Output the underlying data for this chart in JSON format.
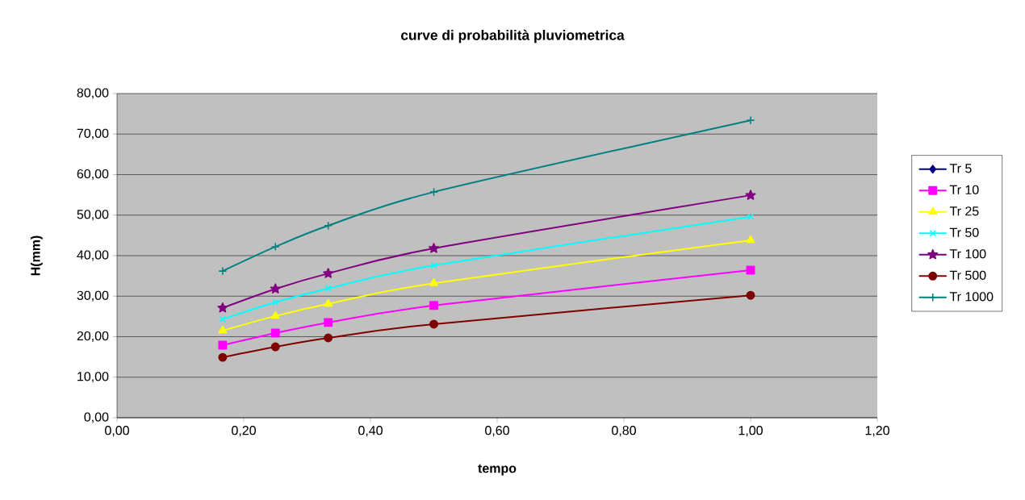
{
  "chart_data": {
    "type": "line",
    "title": "curve di probabilità pluviometrica",
    "xlabel": "tempo",
    "ylabel": "H(mm)",
    "x": [
      0.1667,
      0.25,
      0.3333,
      0.5,
      1.0
    ],
    "series": [
      {
        "name": "Tr 5",
        "color": "#000080",
        "marker": "diamond",
        "values": [
          null,
          null,
          null,
          null,
          null
        ]
      },
      {
        "name": "Tr 10",
        "color": "#ff00ff",
        "marker": "square",
        "values": [
          17.9,
          20.9,
          23.5,
          27.7,
          36.4
        ]
      },
      {
        "name": "Tr 25",
        "color": "#ffff00",
        "marker": "triangle",
        "values": [
          21.5,
          25.1,
          28.1,
          33.2,
          43.8
        ]
      },
      {
        "name": "Tr 50",
        "color": "#00ffff",
        "marker": "cross",
        "values": [
          24.3,
          28.5,
          31.9,
          37.6,
          49.6
        ]
      },
      {
        "name": "Tr 100",
        "color": "#800080",
        "marker": "star",
        "values": [
          27.1,
          31.8,
          35.6,
          41.8,
          54.9
        ]
      },
      {
        "name": "Tr 500",
        "color": "#800000",
        "marker": "circle",
        "values": [
          14.9,
          17.5,
          19.7,
          23.1,
          30.2
        ]
      },
      {
        "name": "Tr 1000",
        "color": "#008080",
        "marker": "plus",
        "values": [
          36.2,
          42.2,
          47.4,
          55.7,
          73.4
        ]
      }
    ],
    "xlim": [
      0,
      1.2
    ],
    "xticks": [
      {
        "value": 0,
        "label": "0,00"
      },
      {
        "value": 0.2,
        "label": "0,20"
      },
      {
        "value": 0.4,
        "label": "0,40"
      },
      {
        "value": 0.6,
        "label": "0,60"
      },
      {
        "value": 0.8,
        "label": "0,80"
      },
      {
        "value": 1.0,
        "label": "1,00"
      },
      {
        "value": 1.2,
        "label": "1,20"
      }
    ],
    "ylim": [
      0,
      80
    ],
    "yticks": [
      {
        "value": 0,
        "label": "0,00"
      },
      {
        "value": 10,
        "label": "10,00"
      },
      {
        "value": 20,
        "label": "20,00"
      },
      {
        "value": 30,
        "label": "30,00"
      },
      {
        "value": 40,
        "label": "40,00"
      },
      {
        "value": 50,
        "label": "50,00"
      },
      {
        "value": 60,
        "label": "60,00"
      },
      {
        "value": 70,
        "label": "70,00"
      },
      {
        "value": 80,
        "label": "80,00"
      }
    ],
    "grid": "y",
    "legend": "right",
    "line_style": "solid"
  }
}
